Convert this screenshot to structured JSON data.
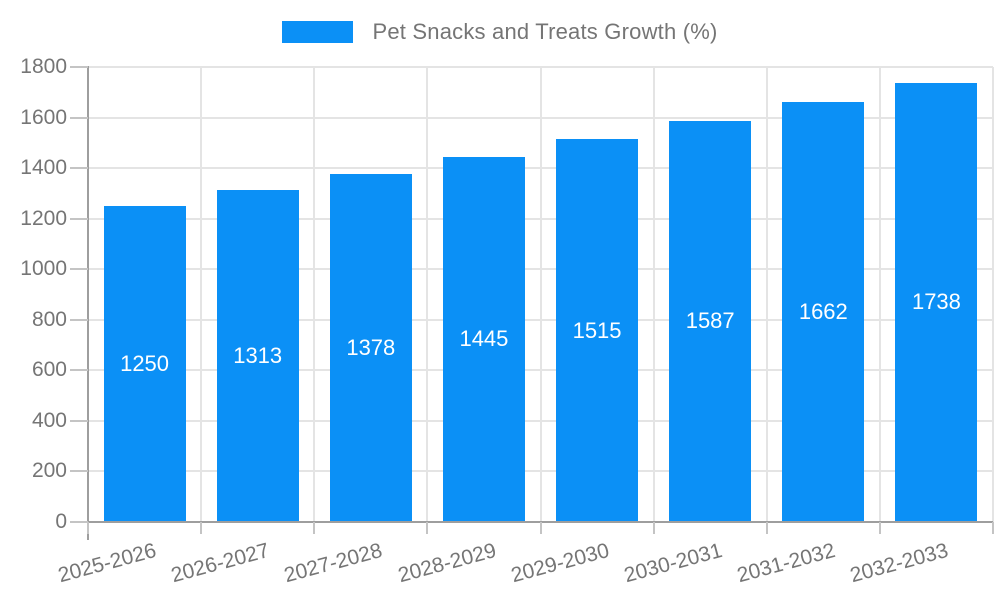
{
  "chart_data": {
    "type": "bar",
    "title": "Pet Snacks and Treats Growth (%)",
    "legend": {
      "position": "top-center",
      "items": [
        {
          "label": "Pet Snacks and Treats Growth (%)",
          "swatch_color": "#0b90f6"
        }
      ]
    },
    "categories": [
      "2025-2026",
      "2026-2027",
      "2027-2028",
      "2028-2029",
      "2029-2030",
      "2030-2031",
      "2031-2032",
      "2032-2033"
    ],
    "series": [
      {
        "name": "Pet Snacks and Treats Growth (%)",
        "color": "#0b90f6",
        "values": [
          1250,
          1313,
          1378,
          1445,
          1515,
          1587,
          1662,
          1738
        ]
      }
    ],
    "data_labels": {
      "visible": true,
      "position": "inside-center",
      "color": "#ffffff"
    },
    "xlabel": "",
    "ylabel": "",
    "ylim": [
      0,
      1800
    ],
    "yticks": [
      0,
      200,
      400,
      600,
      800,
      1000,
      1200,
      1400,
      1600,
      1800
    ],
    "grid": {
      "horizontal": true,
      "vertical": true
    },
    "x_tick_label_rotation_deg": -15,
    "colors": {
      "background": "#ffffff",
      "bar": "#0b90f6",
      "axis_text": "#757575",
      "data_label_text": "#ffffff",
      "gridline": "#e4e4e4",
      "axis_line": "#9e9e9e",
      "tick_mark": "#c4c4c4"
    }
  }
}
